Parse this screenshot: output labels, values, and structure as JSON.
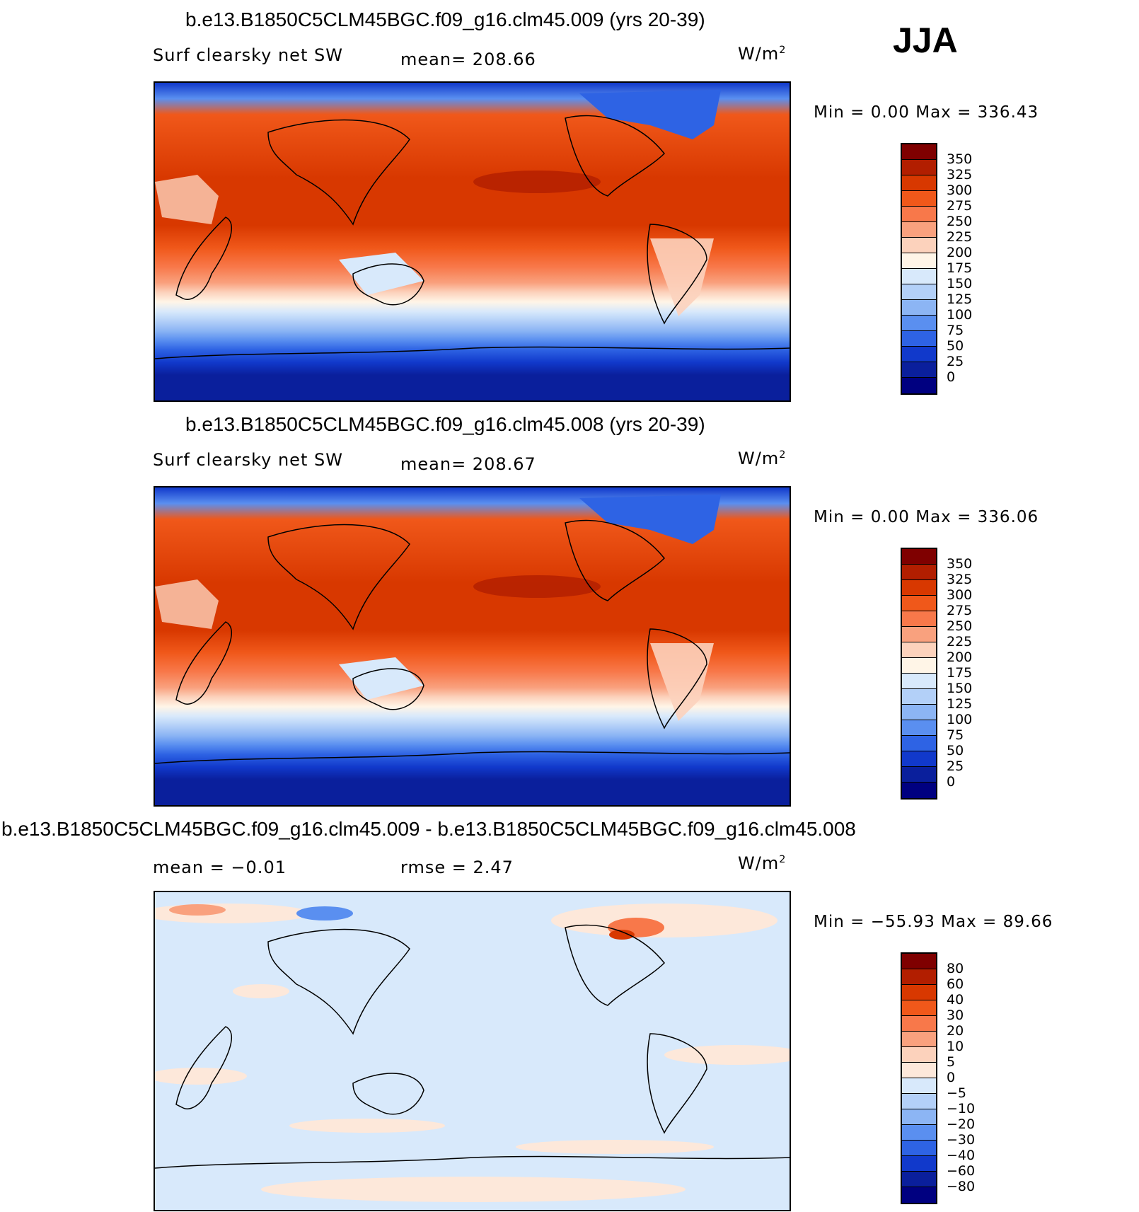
{
  "season_label": "JJA",
  "panels": [
    {
      "title": "b.e13.B1850C5CLM45BGC.f09_g16.clm45.009 (yrs 20-39)",
      "field": "Surf clearsky net SW",
      "stat_text": "mean= 208.66",
      "units_base": "W/m",
      "units_exp": "2",
      "minmax_text": "Min =    0.00 Max = 336.43",
      "colorbar_labels": [
        "350",
        "325",
        "300",
        "275",
        "250",
        "225",
        "200",
        "175",
        "150",
        "125",
        "100",
        "75",
        "50",
        "25",
        "0"
      ]
    },
    {
      "title": "b.e13.B1850C5CLM45BGC.f09_g16.clm45.008 (yrs 20-39)",
      "field": "Surf clearsky net SW",
      "stat_text": "mean= 208.67",
      "units_base": "W/m",
      "units_exp": "2",
      "minmax_text": "Min =    0.00 Max = 336.06",
      "colorbar_labels": [
        "350",
        "325",
        "300",
        "275",
        "250",
        "225",
        "200",
        "175",
        "150",
        "125",
        "100",
        "75",
        "50",
        "25",
        "0"
      ]
    },
    {
      "title": "b.e13.B1850C5CLM45BGC.f09_g16.clm45.009 - b.e13.B1850C5CLM45BGC.f09_g16.clm45.008",
      "mean_text": "mean =   −0.01",
      "rmse_text": "rmse =    2.47",
      "units_base": "W/m",
      "units_exp": "2",
      "minmax_text": "Min = −55.93 Max =  89.66",
      "colorbar_labels": [
        "80",
        "60",
        "40",
        "30",
        "20",
        "10",
        "5",
        "0",
        "−5",
        "−10",
        "−20",
        "−30",
        "−40",
        "−60",
        "−80"
      ]
    }
  ],
  "colors": {
    "abs_scale": [
      "#7f0000",
      "#b21e00",
      "#d83800",
      "#f0581a",
      "#f8784a",
      "#f9a17e",
      "#fcd2bc",
      "#fff5e7",
      "#d8e9fb",
      "#b3d0f8",
      "#8cb5f4",
      "#5a8ff0",
      "#2e63e4",
      "#1139cb",
      "#0a1f9c",
      "#000080"
    ],
    "diff_scale": [
      "#7f0000",
      "#b21e00",
      "#d83800",
      "#f0581a",
      "#f8784a",
      "#f9a17e",
      "#fcd2bc",
      "#fde8da",
      "#d8e9fb",
      "#b3d0f8",
      "#8cb5f4",
      "#5a8ff0",
      "#2e63e4",
      "#1139cb",
      "#0a1f9c",
      "#000080"
    ],
    "diff_background": "#d8e9fb",
    "diff_positive_wash": "#fde8da"
  }
}
